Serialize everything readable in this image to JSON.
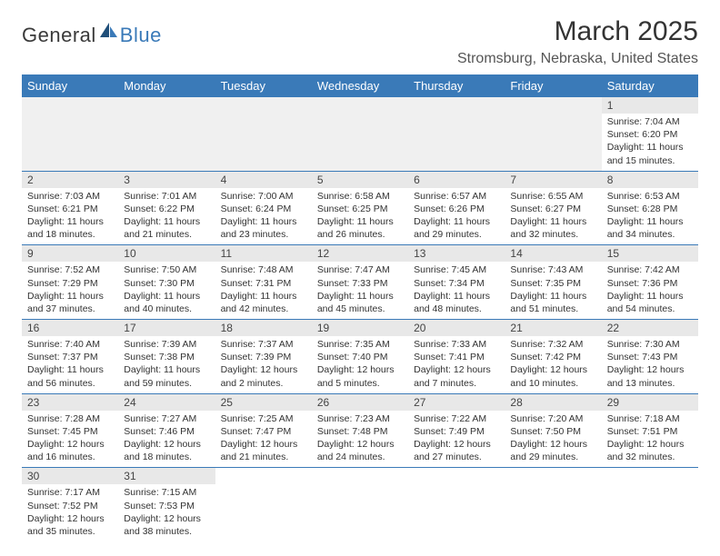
{
  "logo": {
    "text1": "General",
    "text2": "Blue"
  },
  "title": "March 2025",
  "location": "Stromsburg, Nebraska, United States",
  "colors": {
    "header_bg": "#3a7ab8",
    "header_fg": "#ffffff",
    "daybar_bg": "#e8e8e8",
    "border": "#3a7ab8"
  },
  "weekdays": [
    "Sunday",
    "Monday",
    "Tuesday",
    "Wednesday",
    "Thursday",
    "Friday",
    "Saturday"
  ],
  "weeks": [
    [
      null,
      null,
      null,
      null,
      null,
      null,
      {
        "n": "1",
        "sr": "7:04 AM",
        "ss": "6:20 PM",
        "dl": "11 hours and 15 minutes."
      }
    ],
    [
      {
        "n": "2",
        "sr": "7:03 AM",
        "ss": "6:21 PM",
        "dl": "11 hours and 18 minutes."
      },
      {
        "n": "3",
        "sr": "7:01 AM",
        "ss": "6:22 PM",
        "dl": "11 hours and 21 minutes."
      },
      {
        "n": "4",
        "sr": "7:00 AM",
        "ss": "6:24 PM",
        "dl": "11 hours and 23 minutes."
      },
      {
        "n": "5",
        "sr": "6:58 AM",
        "ss": "6:25 PM",
        "dl": "11 hours and 26 minutes."
      },
      {
        "n": "6",
        "sr": "6:57 AM",
        "ss": "6:26 PM",
        "dl": "11 hours and 29 minutes."
      },
      {
        "n": "7",
        "sr": "6:55 AM",
        "ss": "6:27 PM",
        "dl": "11 hours and 32 minutes."
      },
      {
        "n": "8",
        "sr": "6:53 AM",
        "ss": "6:28 PM",
        "dl": "11 hours and 34 minutes."
      }
    ],
    [
      {
        "n": "9",
        "sr": "7:52 AM",
        "ss": "7:29 PM",
        "dl": "11 hours and 37 minutes."
      },
      {
        "n": "10",
        "sr": "7:50 AM",
        "ss": "7:30 PM",
        "dl": "11 hours and 40 minutes."
      },
      {
        "n": "11",
        "sr": "7:48 AM",
        "ss": "7:31 PM",
        "dl": "11 hours and 42 minutes."
      },
      {
        "n": "12",
        "sr": "7:47 AM",
        "ss": "7:33 PM",
        "dl": "11 hours and 45 minutes."
      },
      {
        "n": "13",
        "sr": "7:45 AM",
        "ss": "7:34 PM",
        "dl": "11 hours and 48 minutes."
      },
      {
        "n": "14",
        "sr": "7:43 AM",
        "ss": "7:35 PM",
        "dl": "11 hours and 51 minutes."
      },
      {
        "n": "15",
        "sr": "7:42 AM",
        "ss": "7:36 PM",
        "dl": "11 hours and 54 minutes."
      }
    ],
    [
      {
        "n": "16",
        "sr": "7:40 AM",
        "ss": "7:37 PM",
        "dl": "11 hours and 56 minutes."
      },
      {
        "n": "17",
        "sr": "7:39 AM",
        "ss": "7:38 PM",
        "dl": "11 hours and 59 minutes."
      },
      {
        "n": "18",
        "sr": "7:37 AM",
        "ss": "7:39 PM",
        "dl": "12 hours and 2 minutes."
      },
      {
        "n": "19",
        "sr": "7:35 AM",
        "ss": "7:40 PM",
        "dl": "12 hours and 5 minutes."
      },
      {
        "n": "20",
        "sr": "7:33 AM",
        "ss": "7:41 PM",
        "dl": "12 hours and 7 minutes."
      },
      {
        "n": "21",
        "sr": "7:32 AM",
        "ss": "7:42 PM",
        "dl": "12 hours and 10 minutes."
      },
      {
        "n": "22",
        "sr": "7:30 AM",
        "ss": "7:43 PM",
        "dl": "12 hours and 13 minutes."
      }
    ],
    [
      {
        "n": "23",
        "sr": "7:28 AM",
        "ss": "7:45 PM",
        "dl": "12 hours and 16 minutes."
      },
      {
        "n": "24",
        "sr": "7:27 AM",
        "ss": "7:46 PM",
        "dl": "12 hours and 18 minutes."
      },
      {
        "n": "25",
        "sr": "7:25 AM",
        "ss": "7:47 PM",
        "dl": "12 hours and 21 minutes."
      },
      {
        "n": "26",
        "sr": "7:23 AM",
        "ss": "7:48 PM",
        "dl": "12 hours and 24 minutes."
      },
      {
        "n": "27",
        "sr": "7:22 AM",
        "ss": "7:49 PM",
        "dl": "12 hours and 27 minutes."
      },
      {
        "n": "28",
        "sr": "7:20 AM",
        "ss": "7:50 PM",
        "dl": "12 hours and 29 minutes."
      },
      {
        "n": "29",
        "sr": "7:18 AM",
        "ss": "7:51 PM",
        "dl": "12 hours and 32 minutes."
      }
    ],
    [
      {
        "n": "30",
        "sr": "7:17 AM",
        "ss": "7:52 PM",
        "dl": "12 hours and 35 minutes."
      },
      {
        "n": "31",
        "sr": "7:15 AM",
        "ss": "7:53 PM",
        "dl": "12 hours and 38 minutes."
      },
      null,
      null,
      null,
      null,
      null
    ]
  ],
  "labels": {
    "sunrise": "Sunrise:",
    "sunset": "Sunset:",
    "daylight": "Daylight:"
  }
}
